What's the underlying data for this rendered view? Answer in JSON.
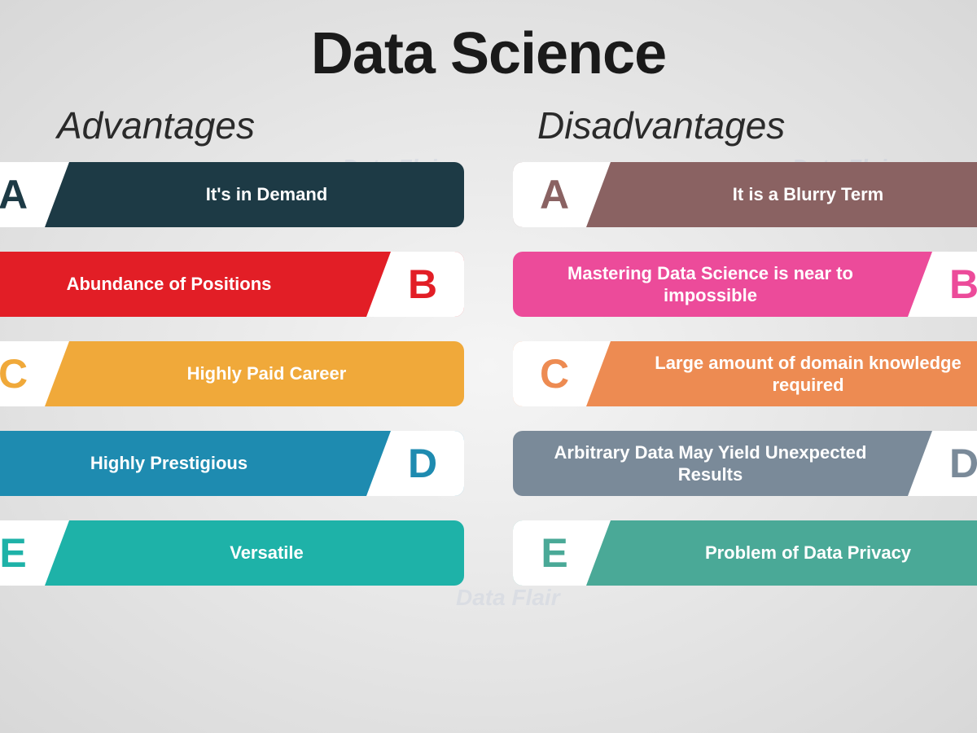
{
  "title": "Data Science",
  "background": {
    "center": "#f5f5f5",
    "edge": "#d8d8d8"
  },
  "watermark_text": "Data Flair",
  "columns": {
    "advantages": {
      "heading": "Advantages",
      "items": [
        {
          "letter": "A",
          "text": "It's in Demand",
          "color": "#1d3a45",
          "letter_side": "left"
        },
        {
          "letter": "B",
          "text": "Abundance of Positions",
          "color": "#e21e26",
          "letter_side": "right"
        },
        {
          "letter": "C",
          "text": "Highly Paid Career",
          "color": "#f0a93a",
          "letter_side": "left"
        },
        {
          "letter": "D",
          "text": "Highly Prestigious",
          "color": "#1e8bb0",
          "letter_side": "right"
        },
        {
          "letter": "E",
          "text": "Versatile",
          "color": "#1eb2a8",
          "letter_side": "left"
        }
      ]
    },
    "disadvantages": {
      "heading": "Disadvantages",
      "items": [
        {
          "letter": "A",
          "text": "It is a Blurry Term",
          "color": "#8a6262",
          "letter_side": "left"
        },
        {
          "letter": "B",
          "text": "Mastering Data Science is near to impossible",
          "color": "#ec4b9a",
          "letter_side": "right"
        },
        {
          "letter": "C",
          "text": "Large amount of domain knowledge required",
          "color": "#ed8b52",
          "letter_side": "left"
        },
        {
          "letter": "D",
          "text": "Arbitrary Data May Yield Unexpected Results",
          "color": "#7a8a99",
          "letter_side": "right"
        },
        {
          "letter": "E",
          "text": "Problem of Data Privacy",
          "color": "#4aa997",
          "letter_side": "left"
        }
      ]
    }
  },
  "typography": {
    "title_fontsize": 72,
    "title_weight": 900,
    "heading_fontsize": 46,
    "heading_style": "italic",
    "item_text_fontsize": 22,
    "item_text_weight": 700,
    "letter_fontsize": 50,
    "letter_weight": 900,
    "text_color": "#ffffff"
  },
  "layout": {
    "item_height": 80,
    "item_gap": 30,
    "item_border_radius": 12,
    "letter_block_width": 120,
    "letter_block_bg": "#ffffff",
    "column_gap": 60
  }
}
